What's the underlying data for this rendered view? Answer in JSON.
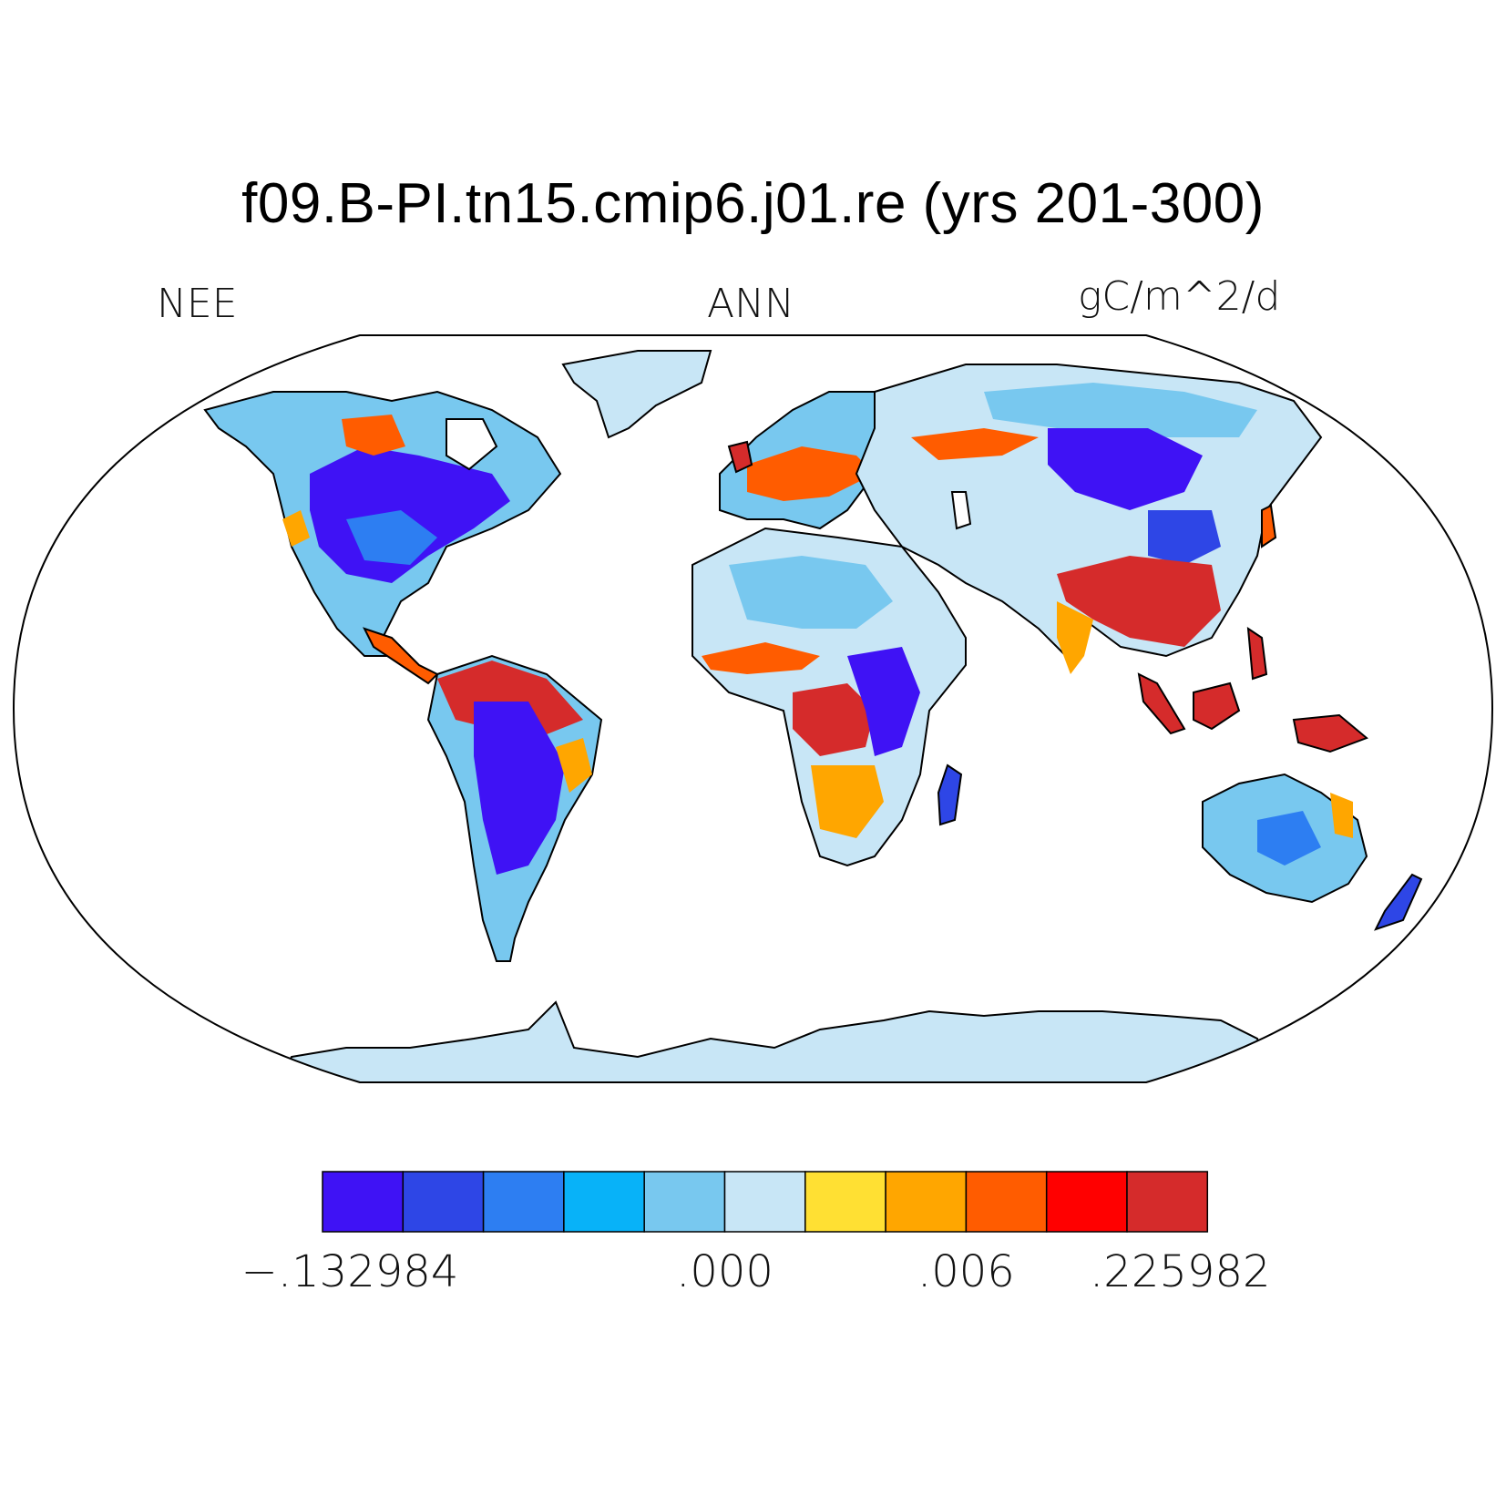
{
  "title": "f09.B-PI.tn15.cmip6.j01.re (yrs 201-300)",
  "left_label": "NEE",
  "center_label": "ANN",
  "right_label": "gC/m^2/d",
  "colorbar": {
    "colors": [
      "#3f12f5",
      "#2e46e6",
      "#2d7ef2",
      "#08b2f8",
      "#78c8ef",
      "#c8e6f6",
      "#ffe033",
      "#ffa600",
      "#ff5c00",
      "#ff0000",
      "#d52b2b"
    ],
    "tick_labels": [
      "−.132984",
      ".000",
      ".006",
      ".225982"
    ]
  },
  "colors": {
    "ocean": "#ffffff",
    "ice": "#c8e6f6",
    "outline": "#000000"
  }
}
